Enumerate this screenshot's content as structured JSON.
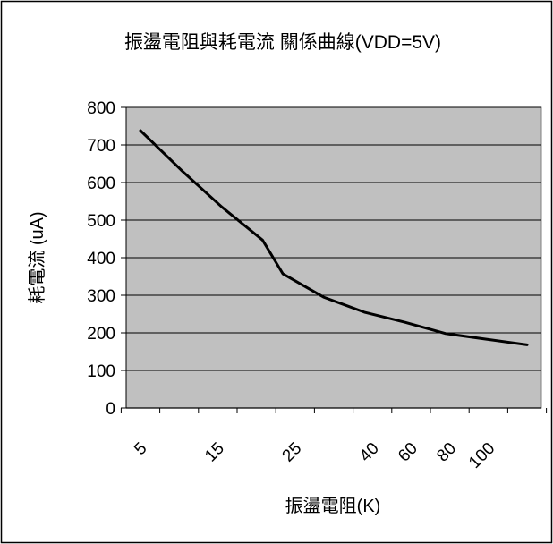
{
  "chart_data": {
    "type": "line",
    "title": "振盪電阻與耗電流 關係曲線(VDD=5V)",
    "xlabel": "振盪電阻(K)",
    "ylabel": "耗電流 (uA)",
    "x_tick_labels": [
      "5",
      "15",
      "25",
      "40",
      "60",
      "80",
      "100"
    ],
    "y_tick_labels": [
      "0",
      "100",
      "200",
      "300",
      "400",
      "500",
      "600",
      "700",
      "800"
    ],
    "ylim": [
      0,
      800
    ],
    "grid": "horizontal",
    "legend": "none",
    "plot_background": "#c0c0c0",
    "line_color": "#000000",
    "series": [
      {
        "x": [
          5,
          15,
          25,
          35,
          40,
          50,
          60,
          70,
          80,
          90,
          100
        ],
        "y": [
          738,
          633,
          535,
          447,
          357,
          295,
          255,
          228,
          198,
          183,
          168
        ]
      }
    ]
  }
}
